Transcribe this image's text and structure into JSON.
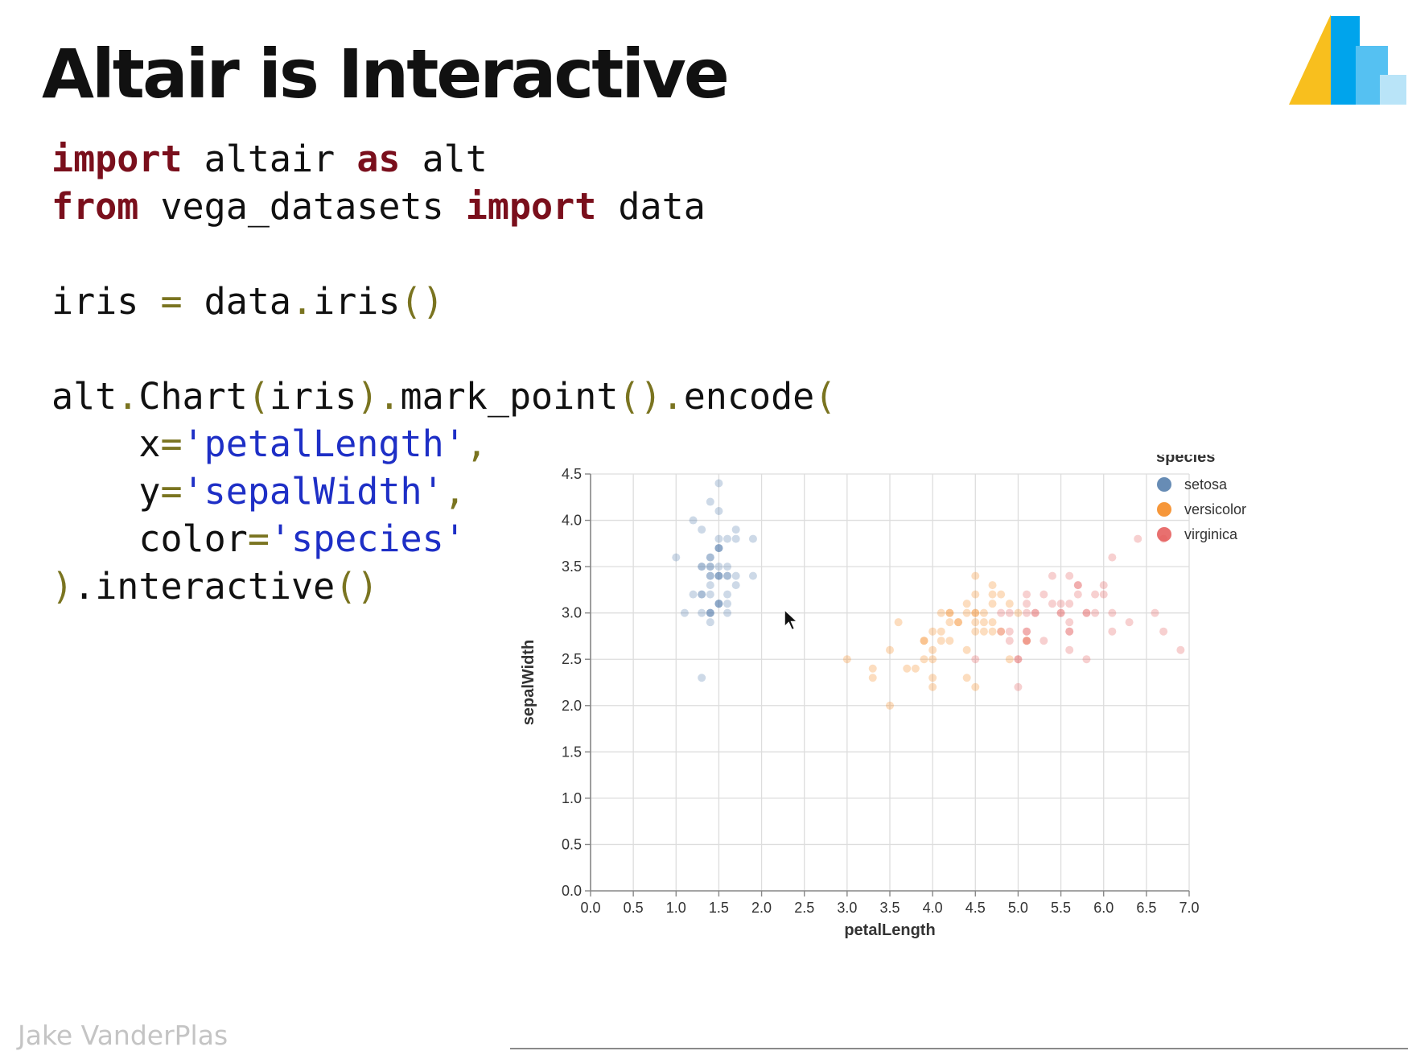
{
  "title": "Altair is Interactive",
  "author": "Jake VanderPlas",
  "logo_icon": "altair-logo-icon",
  "colors": {
    "keyword": "#7a0f1c",
    "punct": "#7a7420",
    "string": "#1e2fc6",
    "setosa": "#4c78a8",
    "versicolor": "#f58518",
    "virginica": "#e45756"
  },
  "code_lines": [
    [
      {
        "t": "import",
        "c": "kw"
      },
      {
        "t": " altair "
      },
      {
        "t": "as",
        "c": "kw"
      },
      {
        "t": " alt"
      }
    ],
    [
      {
        "t": "from",
        "c": "kw"
      },
      {
        "t": " vega_datasets "
      },
      {
        "t": "import",
        "c": "kw"
      },
      {
        "t": " data"
      }
    ],
    [],
    [
      {
        "t": "iris "
      },
      {
        "t": "=",
        "c": "pn"
      },
      {
        "t": " data"
      },
      {
        "t": ".",
        "c": "pn"
      },
      {
        "t": "iris"
      },
      {
        "t": "()",
        "c": "pn"
      }
    ],
    [],
    [
      {
        "t": "alt"
      },
      {
        "t": ".",
        "c": "pn"
      },
      {
        "t": "Chart"
      },
      {
        "t": "(",
        "c": "pn"
      },
      {
        "t": "iris"
      },
      {
        "t": ").",
        "c": "pn"
      },
      {
        "t": "mark_point"
      },
      {
        "t": "().",
        "c": "pn"
      },
      {
        "t": "encode"
      },
      {
        "t": "(",
        "c": "pn"
      }
    ],
    [
      {
        "t": "    x"
      },
      {
        "t": "=",
        "c": "pn"
      },
      {
        "t": "'petalLength'",
        "c": "str"
      },
      {
        "t": ",",
        "c": "pn"
      }
    ],
    [
      {
        "t": "    y"
      },
      {
        "t": "=",
        "c": "pn"
      },
      {
        "t": "'sepalWidth'",
        "c": "str"
      },
      {
        "t": ",",
        "c": "pn"
      }
    ],
    [
      {
        "t": "    color"
      },
      {
        "t": "=",
        "c": "pn"
      },
      {
        "t": "'species'",
        "c": "str"
      }
    ],
    [
      {
        "t": ")",
        "c": "pn"
      },
      {
        "t": "."
      },
      {
        "t": "interactive"
      },
      {
        "t": "()",
        "c": "pn"
      }
    ]
  ],
  "chart_data": {
    "type": "scatter",
    "xlabel": "petalLength",
    "ylabel": "sepalWidth",
    "xlim": [
      0,
      7.0
    ],
    "ylim": [
      0,
      4.5
    ],
    "xticks": [
      "0.0",
      "0.5",
      "1.0",
      "1.5",
      "2.0",
      "2.5",
      "3.0",
      "3.5",
      "4.0",
      "4.5",
      "5.0",
      "5.5",
      "6.0",
      "6.5",
      "7.0"
    ],
    "yticks": [
      "0.0",
      "0.5",
      "1.0",
      "1.5",
      "2.0",
      "2.5",
      "3.0",
      "3.5",
      "4.0",
      "4.5"
    ],
    "grid": true,
    "legend": {
      "title": "species",
      "position": "top-right"
    },
    "series": [
      {
        "name": "setosa",
        "points": [
          [
            1.4,
            3.5
          ],
          [
            1.4,
            3.0
          ],
          [
            1.3,
            3.2
          ],
          [
            1.5,
            3.1
          ],
          [
            1.4,
            3.6
          ],
          [
            1.7,
            3.9
          ],
          [
            1.4,
            3.4
          ],
          [
            1.5,
            3.4
          ],
          [
            1.4,
            2.9
          ],
          [
            1.5,
            3.1
          ],
          [
            1.5,
            3.7
          ],
          [
            1.6,
            3.4
          ],
          [
            1.4,
            3.0
          ],
          [
            1.1,
            3.0
          ],
          [
            1.2,
            4.0
          ],
          [
            1.5,
            4.4
          ],
          [
            1.3,
            3.9
          ],
          [
            1.4,
            3.5
          ],
          [
            1.7,
            3.8
          ],
          [
            1.5,
            3.8
          ],
          [
            1.7,
            3.4
          ],
          [
            1.5,
            3.7
          ],
          [
            1.0,
            3.6
          ],
          [
            1.7,
            3.3
          ],
          [
            1.9,
            3.4
          ],
          [
            1.6,
            3.0
          ],
          [
            1.6,
            3.4
          ],
          [
            1.5,
            3.5
          ],
          [
            1.4,
            3.4
          ],
          [
            1.6,
            3.2
          ],
          [
            1.6,
            3.1
          ],
          [
            1.5,
            3.4
          ],
          [
            1.5,
            4.1
          ],
          [
            1.4,
            4.2
          ],
          [
            1.5,
            3.1
          ],
          [
            1.2,
            3.2
          ],
          [
            1.3,
            3.5
          ],
          [
            1.4,
            3.6
          ],
          [
            1.3,
            3.0
          ],
          [
            1.5,
            3.4
          ],
          [
            1.3,
            3.5
          ],
          [
            1.3,
            2.3
          ],
          [
            1.3,
            3.2
          ],
          [
            1.6,
            3.5
          ],
          [
            1.9,
            3.8
          ],
          [
            1.4,
            3.0
          ],
          [
            1.6,
            3.8
          ],
          [
            1.4,
            3.2
          ],
          [
            1.5,
            3.7
          ],
          [
            1.4,
            3.3
          ]
        ]
      },
      {
        "name": "versicolor",
        "points": [
          [
            4.7,
            3.2
          ],
          [
            4.5,
            3.2
          ],
          [
            4.9,
            3.1
          ],
          [
            4.0,
            2.3
          ],
          [
            4.6,
            2.8
          ],
          [
            4.5,
            2.8
          ],
          [
            4.7,
            3.3
          ],
          [
            3.3,
            2.4
          ],
          [
            4.6,
            2.9
          ],
          [
            3.9,
            2.7
          ],
          [
            3.5,
            2.0
          ],
          [
            4.2,
            3.0
          ],
          [
            4.0,
            2.2
          ],
          [
            4.7,
            2.9
          ],
          [
            3.6,
            2.9
          ],
          [
            4.4,
            3.1
          ],
          [
            4.5,
            3.0
          ],
          [
            4.1,
            2.7
          ],
          [
            4.5,
            2.2
          ],
          [
            3.9,
            2.5
          ],
          [
            4.8,
            3.2
          ],
          [
            4.0,
            2.8
          ],
          [
            4.9,
            2.5
          ],
          [
            4.7,
            2.8
          ],
          [
            4.3,
            2.9
          ],
          [
            4.4,
            3.0
          ],
          [
            4.8,
            2.8
          ],
          [
            5.0,
            3.0
          ],
          [
            4.5,
            2.9
          ],
          [
            3.5,
            2.6
          ],
          [
            3.8,
            2.4
          ],
          [
            3.7,
            2.4
          ],
          [
            3.9,
            2.7
          ],
          [
            5.1,
            2.7
          ],
          [
            4.5,
            3.0
          ],
          [
            4.5,
            3.4
          ],
          [
            4.7,
            3.1
          ],
          [
            4.4,
            2.3
          ],
          [
            4.1,
            3.0
          ],
          [
            4.0,
            2.5
          ],
          [
            4.4,
            2.6
          ],
          [
            4.6,
            3.0
          ],
          [
            4.0,
            2.6
          ],
          [
            3.3,
            2.3
          ],
          [
            4.2,
            2.7
          ],
          [
            4.2,
            3.0
          ],
          [
            4.2,
            2.9
          ],
          [
            4.3,
            2.9
          ],
          [
            3.0,
            2.5
          ],
          [
            4.1,
            2.8
          ]
        ]
      },
      {
        "name": "virginica",
        "points": [
          [
            6.0,
            3.3
          ],
          [
            5.1,
            2.7
          ],
          [
            5.9,
            3.0
          ],
          [
            5.6,
            2.9
          ],
          [
            5.8,
            3.0
          ],
          [
            6.6,
            3.0
          ],
          [
            4.5,
            2.5
          ],
          [
            6.3,
            2.9
          ],
          [
            5.8,
            2.5
          ],
          [
            6.1,
            3.6
          ],
          [
            5.1,
            3.2
          ],
          [
            5.3,
            2.7
          ],
          [
            5.5,
            3.0
          ],
          [
            5.0,
            2.5
          ],
          [
            5.1,
            2.8
          ],
          [
            5.3,
            3.2
          ],
          [
            5.5,
            3.0
          ],
          [
            6.7,
            3.8
          ],
          [
            6.9,
            2.6
          ],
          [
            5.0,
            2.2
          ],
          [
            5.7,
            3.2
          ],
          [
            4.9,
            2.8
          ],
          [
            6.7,
            2.8
          ],
          [
            4.9,
            2.7
          ],
          [
            5.7,
            3.3
          ],
          [
            6.0,
            3.2
          ],
          [
            4.8,
            2.8
          ],
          [
            4.9,
            3.0
          ],
          [
            5.6,
            2.8
          ],
          [
            5.8,
            3.0
          ],
          [
            6.1,
            2.8
          ],
          [
            6.4,
            3.8
          ],
          [
            5.6,
            2.8
          ],
          [
            5.1,
            2.8
          ],
          [
            5.6,
            2.6
          ],
          [
            6.1,
            3.0
          ],
          [
            5.6,
            3.4
          ],
          [
            5.5,
            3.1
          ],
          [
            4.8,
            3.0
          ],
          [
            5.4,
            3.1
          ],
          [
            5.6,
            3.1
          ],
          [
            5.1,
            3.1
          ],
          [
            5.1,
            2.7
          ],
          [
            5.9,
            3.2
          ],
          [
            5.7,
            3.3
          ],
          [
            5.2,
            3.0
          ],
          [
            5.0,
            2.5
          ],
          [
            5.2,
            3.0
          ],
          [
            5.4,
            3.4
          ],
          [
            5.1,
            3.0
          ]
        ]
      }
    ]
  }
}
